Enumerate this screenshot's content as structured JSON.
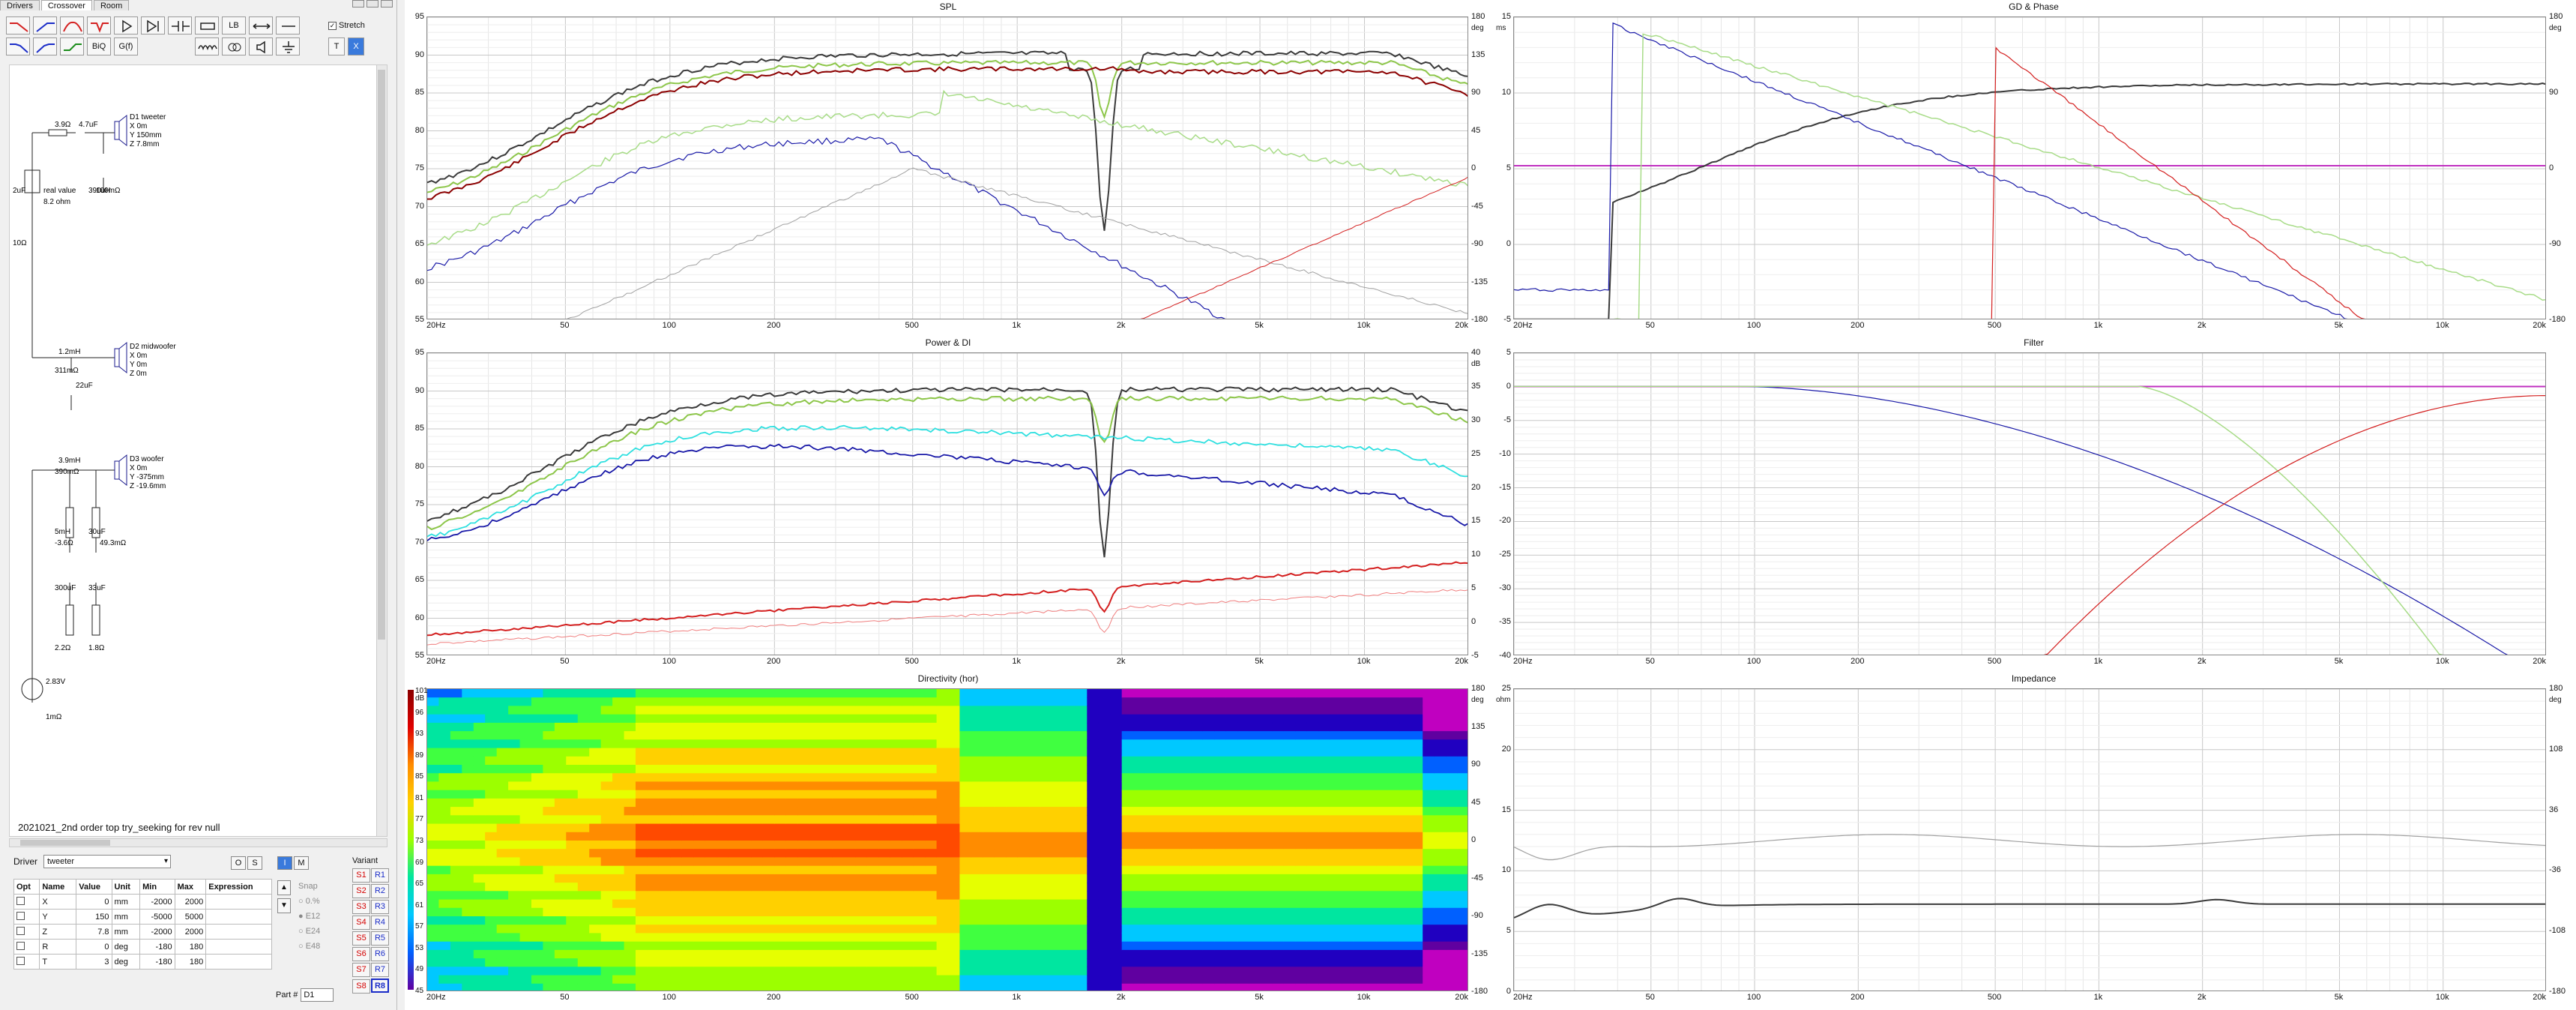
{
  "tabs": [
    "Drivers",
    "Crossover",
    "Room"
  ],
  "toolbar": {
    "stretch_label": "Stretch",
    "labels": {
      "lb": "LB",
      "biq": "BiQ",
      "gb": "G(f)",
      "t": "T",
      "x": "X"
    }
  },
  "schematic": {
    "labels": [
      "3.9Ω",
      "4.7uF",
      "real value",
      "8.2 ohm",
      "2uF",
      "10Ω",
      "390uH",
      "100mΩ",
      "D1 tweeter",
      "X 0m",
      "Y 150mm",
      "Z 7.8mm",
      "1.2mH",
      "311mΩ",
      "22uF",
      "D2 midwoofer",
      "X 0m",
      "Y 0m",
      "Z 0m",
      "3.9mH",
      "390mΩ",
      "5mH",
      "-3.6Ω",
      "30uF",
      "49.3mΩ",
      "300uF",
      "33uF",
      "2.2Ω",
      "1.8Ω",
      "D3 woofer",
      "X 0m",
      "Y -375mm",
      "Z -19.6mm",
      "2.83V",
      "1mΩ"
    ]
  },
  "project_name": "2021021_2nd order top try_seeking for rev null",
  "driver": {
    "label": "Driver",
    "selected": "tweeter"
  },
  "osm": [
    "O",
    "S",
    "I",
    "M"
  ],
  "params": {
    "headers": [
      "Opt",
      "Name",
      "Value",
      "Unit",
      "Min",
      "Max",
      "Expression"
    ],
    "rows": [
      {
        "name": "X",
        "value": "0",
        "unit": "mm",
        "min": "-2000",
        "max": "2000",
        "expr": ""
      },
      {
        "name": "Y",
        "value": "150",
        "unit": "mm",
        "min": "-5000",
        "max": "5000",
        "expr": ""
      },
      {
        "name": "Z",
        "value": "7.8",
        "unit": "mm",
        "min": "-2000",
        "max": "2000",
        "expr": ""
      },
      {
        "name": "R",
        "value": "0",
        "unit": "deg",
        "min": "-180",
        "max": "180",
        "expr": ""
      },
      {
        "name": "T",
        "value": "3",
        "unit": "deg",
        "min": "-180",
        "max": "180",
        "expr": ""
      }
    ]
  },
  "snap": {
    "title": "Snap",
    "options": [
      "0.%",
      "E12",
      "E24",
      "E48"
    ]
  },
  "variant": {
    "title": "Variant",
    "s": [
      "S1",
      "S2",
      "S3",
      "S4",
      "S5",
      "S6",
      "S7",
      "S8"
    ],
    "r": [
      "R1",
      "R2",
      "R3",
      "R4",
      "R5",
      "R6",
      "R7",
      "R8"
    ],
    "selected_r": "R8"
  },
  "part": {
    "label": "Part #",
    "value": "D1"
  },
  "x_ticks": [
    "20Hz",
    "50",
    "100",
    "200",
    "500",
    "1k",
    "2k",
    "5k",
    "10k",
    "20k"
  ],
  "graphs": {
    "spl": {
      "title": "SPL",
      "y_left": [
        "95",
        "90",
        "85",
        "80",
        "75",
        "70",
        "65",
        "60",
        "55"
      ],
      "y_right": [
        "180",
        "135",
        "90",
        "45",
        "0",
        "-45",
        "-90",
        "-135",
        "-180"
      ],
      "unit_right": "deg"
    },
    "gd": {
      "title": "GD & Phase",
      "unit_left": "ms",
      "y_left": [
        "15",
        "10",
        "5",
        "0",
        "-5"
      ],
      "y_right": [
        "180",
        "90",
        "0",
        "-90",
        "-180"
      ],
      "unit_right": "deg"
    },
    "power": {
      "title": "Power & DI",
      "y_left": [
        "95",
        "90",
        "85",
        "80",
        "75",
        "70",
        "65",
        "60",
        "55"
      ],
      "y_right": [
        "40",
        "35",
        "30",
        "25",
        "20",
        "15",
        "10",
        "5",
        "0",
        "-5"
      ],
      "unit_right": "dB"
    },
    "filter": {
      "title": "Filter",
      "y_left": [
        "5",
        "0",
        "-5",
        "-10",
        "-15",
        "-20",
        "-25",
        "-30",
        "-35",
        "-40"
      ]
    },
    "directivity": {
      "title": "Directivity (hor)",
      "scale": [
        "101",
        "96",
        "93",
        "89",
        "85",
        "81",
        "77",
        "73",
        "69",
        "65",
        "61",
        "57",
        "53",
        "49",
        "45"
      ],
      "unit_scale": "dB",
      "y_right": [
        "180",
        "135",
        "90",
        "45",
        "0",
        "-45",
        "-90",
        "-135",
        "-180"
      ],
      "unit_right": "deg"
    },
    "impedance": {
      "title": "Impedance",
      "unit_left": "ohm",
      "y_left": [
        "25",
        "20",
        "15",
        "10",
        "5",
        "0"
      ],
      "y_right": [
        "180",
        "108",
        "36",
        "-36",
        "-108",
        "-180"
      ],
      "unit_right": "deg"
    }
  },
  "colors": {
    "total": "#3a3a3a",
    "green": "#8dc64a",
    "lightgreen": "#a8dc88",
    "darkred": "#8b0000",
    "red": "#d42020",
    "blue": "#1a1aa8",
    "cyan": "#30e0e0",
    "magenta": "#c030c0",
    "gray": "#a0a0a0"
  }
}
